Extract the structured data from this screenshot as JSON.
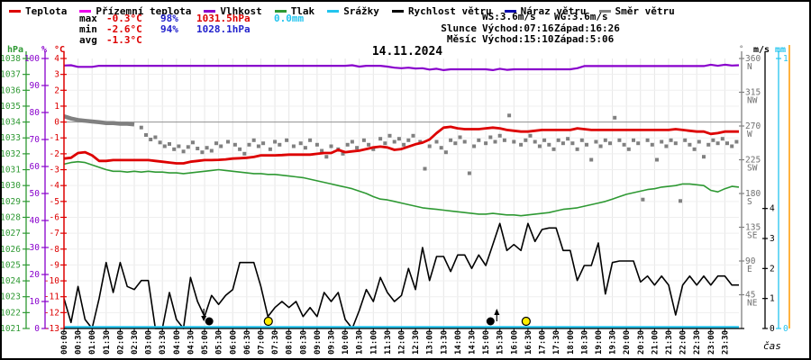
{
  "title": "14.11.2024",
  "xaxis_label": "čas",
  "legend": {
    "items": [
      {
        "label": "Teplota",
        "color": "#dd0000"
      },
      {
        "label": "Přízemní teplota",
        "color": "#ee00ee"
      },
      {
        "label": "Vlhkost",
        "color": "#8800cc"
      },
      {
        "label": "Tlak",
        "color": "#2e9933"
      },
      {
        "label": "Srážky",
        "color": "#22c4ee"
      },
      {
        "label": "Rychlost větru",
        "color": "#000000"
      },
      {
        "label": "Náraz větru",
        "color": "#0000aa"
      },
      {
        "label": "Směr větru",
        "color": "#808080"
      }
    ]
  },
  "stats_rows": [
    [
      {
        "t": "max",
        "c": "#000000"
      },
      {
        "t": "-0.3°C",
        "c": "#dd0000"
      },
      {
        "t": "98%",
        "c": "#2222cc"
      },
      {
        "t": "1031.5hPa",
        "c": "#dd0000"
      },
      {
        "t": "0.0mm",
        "c": "#22c4ee"
      }
    ],
    [
      {
        "t": "min",
        "c": "#000000"
      },
      {
        "t": "-2.6°C",
        "c": "#dd0000"
      },
      {
        "t": "94%",
        "c": "#2222cc"
      },
      {
        "t": "1028.1hPa",
        "c": "#2222cc"
      }
    ],
    [
      {
        "t": "avg",
        "c": "#000000"
      },
      {
        "t": "-1.3°C",
        "c": "#dd0000"
      }
    ]
  ],
  "astro": {
    "ws": "WS:3.6m/s",
    "wg": "WG:3.6m/s",
    "sun_label": "Slunce",
    "sun_rise": "Východ:07:16",
    "sun_set": "Západ:16:26",
    "moon_label": "Měsíc",
    "moon_rise": "Východ:15:10",
    "moon_set": "Západ:5:06"
  },
  "chart_data": {
    "type": "line",
    "title": "14.11.2024",
    "xlabel": "čas",
    "x_start_min": 0,
    "x_step_min": 15,
    "x_tick_step_min": 30,
    "x_tick_labels_from": "00:00",
    "x_tick_labels_to": "23:30",
    "grid": {
      "v_step_min": 30,
      "h_step_temp": 1,
      "color": "#e6e6e6",
      "zero_line_color": "#909090"
    },
    "axes": {
      "temp": {
        "label": "°C",
        "color": "#dd0000",
        "min": -13,
        "max": 4,
        "tick": 1
      },
      "humidity": {
        "label": "%",
        "color": "#8800cc",
        "min": 0,
        "max": 100,
        "tick": 10
      },
      "pressure": {
        "label": "hPa",
        "color": "#2e9933",
        "min": 1021,
        "max": 1038,
        "tick": 1
      },
      "direction": {
        "label": "°",
        "color": "#808080",
        "min": 0,
        "max": 360,
        "tick": 45,
        "compass": {
          "360": "N",
          "315": "NW",
          "270": "W",
          "225": "SW",
          "180": "S",
          "135": "SE",
          "90": "E",
          "45": "NE"
        }
      },
      "wind": {
        "label": "m/s",
        "color": "#000000",
        "min": 0,
        "max": 9,
        "tick": 1,
        "max_labeled_tick": 4
      },
      "precip": {
        "label": "mm",
        "color": "#22c4ee",
        "min": 0,
        "max": 1,
        "tick": 1
      }
    },
    "extra_axis_line_color": "#ff9900",
    "series": [
      {
        "name": "Teplota",
        "unit": "°C",
        "axis": "temp",
        "color": "#dd0000",
        "width": 2.8,
        "values": [
          -2.3,
          -2.25,
          -1.95,
          -1.9,
          -2.1,
          -2.45,
          -2.45,
          -2.4,
          -2.4,
          -2.4,
          -2.4,
          -2.4,
          -2.4,
          -2.45,
          -2.5,
          -2.55,
          -2.6,
          -2.6,
          -2.5,
          -2.45,
          -2.4,
          -2.4,
          -2.38,
          -2.35,
          -2.3,
          -2.28,
          -2.25,
          -2.2,
          -2.1,
          -2.1,
          -2.1,
          -2.08,
          -2.05,
          -2.05,
          -2.05,
          -2.05,
          -2.0,
          -1.95,
          -1.95,
          -1.75,
          -1.9,
          -1.85,
          -1.8,
          -1.7,
          -1.6,
          -1.55,
          -1.6,
          -1.75,
          -1.7,
          -1.55,
          -1.4,
          -1.3,
          -1.1,
          -0.7,
          -0.35,
          -0.3,
          -0.4,
          -0.45,
          -0.45,
          -0.45,
          -0.4,
          -0.35,
          -0.4,
          -0.5,
          -0.55,
          -0.6,
          -0.6,
          -0.55,
          -0.5,
          -0.5,
          -0.5,
          -0.5,
          -0.5,
          -0.4,
          -0.45,
          -0.5,
          -0.5,
          -0.5,
          -0.5,
          -0.5,
          -0.5,
          -0.5,
          -0.5,
          -0.5,
          -0.5,
          -0.5,
          -0.5,
          -0.45,
          -0.5,
          -0.55,
          -0.6,
          -0.6,
          -0.75,
          -0.7,
          -0.6,
          -0.6,
          -0.6
        ]
      },
      {
        "name": "Přízemní teplota",
        "unit": "°C",
        "axis": "temp",
        "color": "#ee00ee",
        "note": "not visibly separate from Teplota in this image"
      },
      {
        "name": "Vlhkost",
        "unit": "%",
        "axis": "humidity",
        "color": "#8800cc",
        "width": 2.2,
        "values": [
          97.4,
          97.5,
          96.9,
          96.9,
          96.9,
          97.3,
          97.3,
          97.3,
          97.3,
          97.3,
          97.3,
          97.3,
          97.3,
          97.3,
          97.3,
          97.3,
          97.3,
          97.3,
          97.3,
          97.3,
          97.3,
          97.3,
          97.3,
          97.3,
          97.3,
          97.3,
          97.3,
          97.3,
          97.3,
          97.3,
          97.3,
          97.3,
          97.3,
          97.3,
          97.3,
          97.3,
          97.3,
          97.3,
          97.3,
          97.3,
          97.3,
          97.5,
          97.0,
          97.3,
          97.3,
          97.3,
          97.0,
          96.6,
          96.4,
          96.6,
          96.3,
          96.4,
          95.9,
          96.2,
          95.7,
          96.0,
          96.0,
          96.0,
          96.0,
          96.0,
          96.0,
          95.7,
          96.2,
          95.8,
          96.0,
          96.0,
          96.0,
          96.0,
          96.0,
          96.0,
          96.0,
          96.0,
          96.0,
          96.4,
          97.2,
          97.2,
          97.2,
          97.2,
          97.2,
          97.2,
          97.2,
          97.2,
          97.2,
          97.2,
          97.2,
          97.2,
          97.2,
          97.2,
          97.2,
          97.2,
          97.2,
          97.2,
          97.7,
          97.3,
          97.7,
          97.4,
          97.5
        ]
      },
      {
        "name": "Tlak",
        "unit": "hPa",
        "axis": "pressure",
        "color": "#2e9933",
        "width": 1.6,
        "values": [
          1031.35,
          1031.45,
          1031.5,
          1031.45,
          1031.3,
          1031.15,
          1031.0,
          1030.9,
          1030.9,
          1030.85,
          1030.9,
          1030.85,
          1030.9,
          1030.85,
          1030.85,
          1030.8,
          1030.8,
          1030.75,
          1030.8,
          1030.85,
          1030.9,
          1030.95,
          1031.0,
          1030.95,
          1030.9,
          1030.85,
          1030.8,
          1030.75,
          1030.75,
          1030.7,
          1030.7,
          1030.65,
          1030.6,
          1030.55,
          1030.5,
          1030.4,
          1030.3,
          1030.2,
          1030.1,
          1030.0,
          1029.9,
          1029.8,
          1029.65,
          1029.5,
          1029.3,
          1029.15,
          1029.1,
          1029.0,
          1028.9,
          1028.8,
          1028.7,
          1028.6,
          1028.55,
          1028.5,
          1028.45,
          1028.4,
          1028.35,
          1028.3,
          1028.25,
          1028.2,
          1028.2,
          1028.25,
          1028.2,
          1028.15,
          1028.15,
          1028.1,
          1028.15,
          1028.2,
          1028.25,
          1028.3,
          1028.4,
          1028.5,
          1028.55,
          1028.6,
          1028.7,
          1028.8,
          1028.9,
          1029.0,
          1029.15,
          1029.3,
          1029.45,
          1029.55,
          1029.65,
          1029.75,
          1029.8,
          1029.9,
          1029.95,
          1030.0,
          1030.1,
          1030.1,
          1030.05,
          1030.0,
          1029.7,
          1029.6,
          1029.8,
          1029.95,
          1029.9
        ]
      },
      {
        "name": "Rychlost větru",
        "unit": "m/s",
        "axis": "wind",
        "color": "#000000",
        "width": 1.6,
        "values": [
          1.0,
          0.2,
          1.4,
          0.3,
          0.0,
          1.0,
          2.2,
          1.2,
          2.2,
          1.4,
          1.3,
          1.6,
          1.6,
          0.0,
          0.0,
          1.2,
          0.3,
          0.0,
          1.7,
          0.9,
          0.4,
          1.1,
          0.8,
          1.1,
          1.3,
          2.2,
          2.2,
          2.2,
          1.4,
          0.4,
          0.7,
          0.9,
          0.7,
          0.9,
          0.4,
          0.7,
          0.4,
          1.2,
          0.9,
          1.2,
          0.3,
          0.0,
          0.6,
          1.3,
          0.9,
          1.7,
          1.2,
          0.9,
          1.1,
          2.0,
          1.3,
          2.7,
          1.6,
          2.4,
          2.4,
          1.9,
          2.45,
          2.45,
          2.0,
          2.45,
          2.1,
          2.8,
          3.5,
          2.6,
          2.8,
          2.6,
          3.5,
          2.9,
          3.3,
          3.35,
          3.35,
          2.6,
          2.6,
          1.6,
          2.1,
          2.1,
          2.85,
          1.15,
          2.2,
          2.25,
          2.25,
          2.25,
          1.55,
          1.75,
          1.45,
          1.75,
          1.45,
          0.45,
          1.45,
          1.75,
          1.45,
          1.75,
          1.45,
          1.75,
          1.75,
          1.45,
          1.45
        ]
      },
      {
        "name": "Náraz větru",
        "unit": "m/s",
        "axis": "wind",
        "color": "#0000aa",
        "note": "coincides with Rychlost větru (WG 3.6 = WS 3.6)"
      },
      {
        "name": "Srážky",
        "unit": "mm",
        "axis": "precip",
        "color": "#22c4ee",
        "width": 2.4,
        "constant": 0
      },
      {
        "name": "Směr větru",
        "unit": "°",
        "axis": "direction",
        "color": "#808080",
        "line_points": [
          [
            0,
            283
          ],
          [
            15,
            280
          ],
          [
            30,
            278
          ],
          [
            45,
            277
          ],
          [
            60,
            276
          ],
          [
            75,
            275
          ],
          [
            90,
            274
          ],
          [
            105,
            274
          ],
          [
            120,
            273
          ],
          [
            135,
            273
          ],
          [
            150,
            272
          ]
        ],
        "scatter": [
          [
            165,
            268
          ],
          [
            175,
            258
          ],
          [
            185,
            252
          ],
          [
            195,
            255
          ],
          [
            205,
            248
          ],
          [
            215,
            243
          ],
          [
            225,
            246
          ],
          [
            235,
            239
          ],
          [
            245,
            243
          ],
          [
            255,
            236
          ],
          [
            265,
            242
          ],
          [
            275,
            248
          ],
          [
            285,
            240
          ],
          [
            295,
            235
          ],
          [
            305,
            241
          ],
          [
            315,
            237
          ],
          [
            325,
            247
          ],
          [
            335,
            243
          ],
          [
            350,
            249
          ],
          [
            365,
            245
          ],
          [
            375,
            239
          ],
          [
            385,
            233
          ],
          [
            395,
            245
          ],
          [
            405,
            251
          ],
          [
            415,
            243
          ],
          [
            425,
            247
          ],
          [
            440,
            239
          ],
          [
            450,
            249
          ],
          [
            460,
            245
          ],
          [
            475,
            251
          ],
          [
            490,
            243
          ],
          [
            505,
            247
          ],
          [
            515,
            241
          ],
          [
            525,
            251
          ],
          [
            540,
            245
          ],
          [
            550,
            237
          ],
          [
            560,
            229
          ],
          [
            570,
            243
          ],
          [
            585,
            239
          ],
          [
            595,
            233
          ],
          [
            605,
            245
          ],
          [
            615,
            249
          ],
          [
            625,
            241
          ],
          [
            640,
            251
          ],
          [
            650,
            245
          ],
          [
            660,
            239
          ],
          [
            675,
            253
          ],
          [
            685,
            247
          ],
          [
            695,
            257
          ],
          [
            705,
            249
          ],
          [
            715,
            253
          ],
          [
            725,
            245
          ],
          [
            735,
            251
          ],
          [
            745,
            257
          ],
          [
            760,
            249
          ],
          [
            770,
            213
          ],
          [
            780,
            243
          ],
          [
            795,
            249
          ],
          [
            805,
            241
          ],
          [
            815,
            235
          ],
          [
            825,
            251
          ],
          [
            835,
            247
          ],
          [
            845,
            255
          ],
          [
            855,
            249
          ],
          [
            865,
            207
          ],
          [
            875,
            243
          ],
          [
            885,
            251
          ],
          [
            900,
            247
          ],
          [
            910,
            255
          ],
          [
            920,
            249
          ],
          [
            930,
            257
          ],
          [
            940,
            251
          ],
          [
            950,
            284
          ],
          [
            960,
            249
          ],
          [
            975,
            245
          ],
          [
            985,
            251
          ],
          [
            995,
            257
          ],
          [
            1005,
            249
          ],
          [
            1015,
            243
          ],
          [
            1025,
            251
          ],
          [
            1035,
            245
          ],
          [
            1045,
            239
          ],
          [
            1055,
            251
          ],
          [
            1065,
            247
          ],
          [
            1075,
            253
          ],
          [
            1085,
            247
          ],
          [
            1095,
            239
          ],
          [
            1105,
            251
          ],
          [
            1115,
            245
          ],
          [
            1125,
            225
          ],
          [
            1135,
            249
          ],
          [
            1145,
            243
          ],
          [
            1155,
            251
          ],
          [
            1165,
            247
          ],
          [
            1175,
            281
          ],
          [
            1185,
            251
          ],
          [
            1195,
            245
          ],
          [
            1205,
            239
          ],
          [
            1215,
            251
          ],
          [
            1225,
            247
          ],
          [
            1235,
            172
          ],
          [
            1245,
            251
          ],
          [
            1255,
            245
          ],
          [
            1265,
            225
          ],
          [
            1275,
            249
          ],
          [
            1285,
            243
          ],
          [
            1295,
            251
          ],
          [
            1305,
            247
          ],
          [
            1315,
            170
          ],
          [
            1325,
            251
          ],
          [
            1335,
            245
          ],
          [
            1345,
            239
          ],
          [
            1355,
            249
          ],
          [
            1365,
            229
          ],
          [
            1375,
            245
          ],
          [
            1385,
            251
          ],
          [
            1395,
            247
          ],
          [
            1405,
            253
          ],
          [
            1415,
            247
          ],
          [
            1425,
            243
          ],
          [
            1435,
            249
          ]
        ]
      }
    ],
    "events": {
      "sun": {
        "color": "#ffee00",
        "rise": "07:16",
        "set": "16:26"
      },
      "moon": {
        "color": "#000000",
        "rise": "15:10",
        "set": "5:06"
      }
    }
  }
}
